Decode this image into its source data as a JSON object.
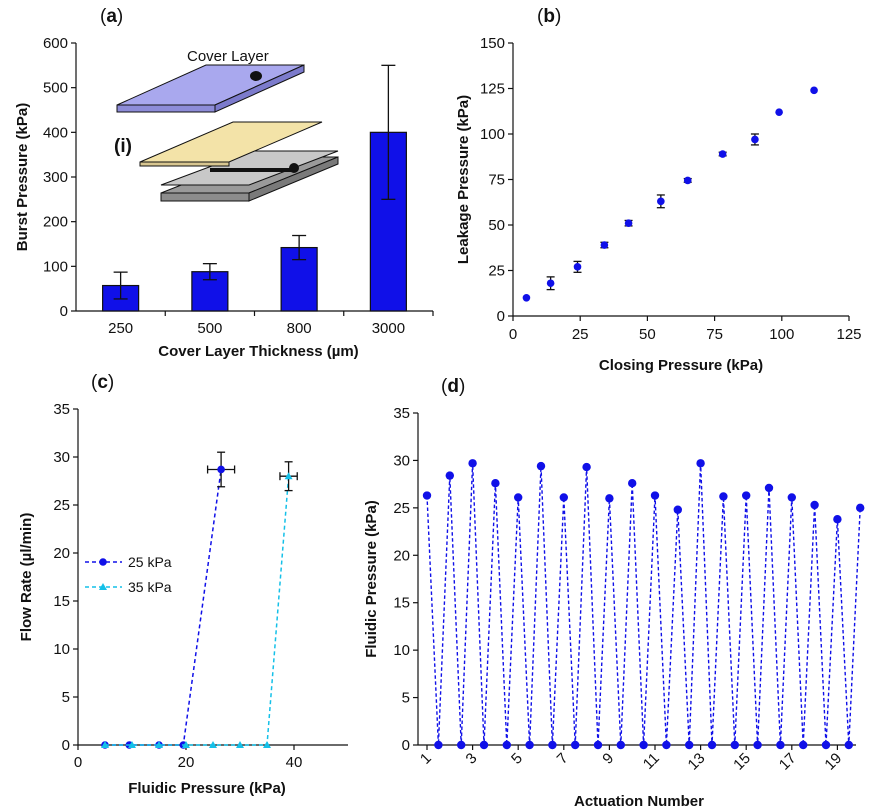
{
  "colors": {
    "blue": "#1010e8",
    "cyan": "#14c0e8",
    "axis": "#111111",
    "pale_blue": "#a9a8ee",
    "pale_yellow": "#f3e3a8",
    "gray": "#c8c8c8"
  },
  "chart_data": [
    {
      "panel": "a",
      "panel_label": "(a)",
      "type": "bar",
      "categories": [
        "250",
        "500",
        "800",
        "3000"
      ],
      "values": [
        57,
        88,
        142,
        400
      ],
      "errors": [
        30,
        18,
        27,
        150
      ],
      "xlabel": "Cover Layer Thickness (µm)",
      "ylabel": "Burst Pressure (kPa)",
      "ylim": [
        0,
        600
      ],
      "yticks": [
        0,
        100,
        200,
        300,
        400,
        500,
        600
      ],
      "inset": {
        "label": "(i)",
        "layer_label": "Cover Layer"
      }
    },
    {
      "panel": "b",
      "panel_label": "(b)",
      "type": "scatter",
      "x": [
        5,
        14,
        24,
        34,
        43,
        55,
        65,
        78,
        90,
        99,
        112
      ],
      "y": [
        10,
        18,
        27,
        39,
        51,
        63,
        74.5,
        89,
        97,
        112,
        124
      ],
      "yerr": [
        0.5,
        3.5,
        3,
        1.5,
        1.5,
        3.5,
        1,
        1,
        3,
        0.5,
        0.5
      ],
      "xlabel": "Closing Pressure (kPa)",
      "ylabel": "Leakage Pressure (kPa)",
      "xlim": [
        0,
        125
      ],
      "ylim": [
        0,
        150
      ],
      "xticks": [
        0,
        25,
        50,
        75,
        100,
        125
      ],
      "yticks": [
        0,
        25,
        50,
        75,
        100,
        125,
        150
      ]
    },
    {
      "panel": "c",
      "panel_label": "(c)",
      "type": "line",
      "xlabel": "Fluidic Pressure (kPa)",
      "ylabel": "Flow Rate (µl/min)",
      "xlim": [
        0,
        50
      ],
      "ylim": [
        0,
        35
      ],
      "xticks": [
        0,
        20,
        40
      ],
      "yticks": [
        0,
        5,
        10,
        15,
        20,
        25,
        30,
        35
      ],
      "legend_position": "middle-left",
      "series": [
        {
          "name": "25 kPa",
          "marker": "circle",
          "x": [
            5,
            9.5,
            15,
            19.5,
            26.5
          ],
          "y": [
            0,
            0,
            0,
            0,
            28.7
          ],
          "xerr_last": 2.5,
          "yerr_last": 1.8
        },
        {
          "name": "35 kPa",
          "marker": "triangle",
          "x": [
            5,
            10,
            15,
            20,
            25,
            30,
            35,
            39
          ],
          "y": [
            0,
            0,
            0,
            0,
            0,
            0,
            0,
            28
          ],
          "xerr_last": 1.6,
          "yerr_last": 1.5
        }
      ]
    },
    {
      "panel": "d",
      "panel_label": "(d)",
      "type": "line",
      "xlabel": "Actuation Number",
      "ylabel": "Fluidic  Pressure (kPa)",
      "ylim": [
        0,
        35
      ],
      "yticks": [
        0,
        5,
        10,
        15,
        20,
        25,
        30,
        35
      ],
      "xticks": [
        "1",
        "3",
        "5",
        "7",
        "9",
        "11",
        "13",
        "15",
        "17",
        "19"
      ],
      "actuation_peaks": [
        26.3,
        28.4,
        29.7,
        27.6,
        26.1,
        29.4,
        26.1,
        29.3,
        26.0,
        27.6,
        26.3,
        24.8,
        29.7,
        26.2,
        26.3,
        27.1,
        26.1,
        25.3,
        23.8,
        25.0
      ]
    }
  ]
}
